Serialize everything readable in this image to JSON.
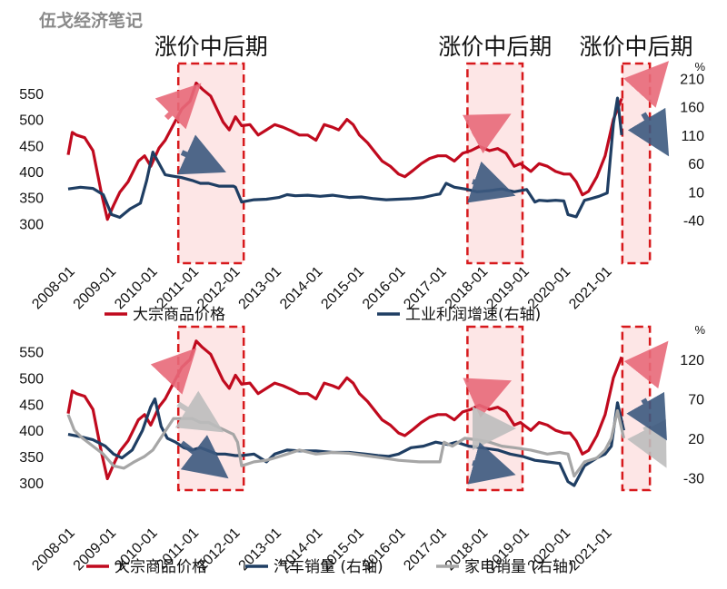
{
  "watermark": "伍戈经济笔记",
  "colors": {
    "commodity": "#c00a1e",
    "industrial": "#1f3e63",
    "auto": "#1f3e63",
    "appliance": "#a6a6a6",
    "highlight_border": "#d7191c",
    "highlight_fill": "#fde6e6"
  },
  "chart_data": [
    {
      "type": "line",
      "title": "",
      "x_tick_labels": [
        "2008-01",
        "2009-01",
        "2010-01",
        "2011-01",
        "2012-01",
        "2013-01",
        "2014-01",
        "2015-01",
        "2016-01",
        "2017-01",
        "2018-01",
        "2019-01",
        "2020-01",
        "2021-01"
      ],
      "y_left_ticks": [
        300,
        350,
        400,
        450,
        500,
        550
      ],
      "y_left_range": [
        290,
        590
      ],
      "y_right_ticks": [
        -40,
        10,
        60,
        110,
        160,
        210
      ],
      "y_right_range": [
        -55,
        220
      ],
      "y_right_unit": "%",
      "highlight_labels": [
        "涨价中后期",
        "涨价中后期",
        "涨价中后期"
      ],
      "highlight_periods": [
        [
          "2010-09",
          "2012-04"
        ],
        [
          "2017-09",
          "2019-01"
        ],
        [
          "2021-06",
          "2022-02"
        ]
      ],
      "series": [
        {
          "name": "大宗商品价格",
          "axis": "left",
          "color_key": "commodity",
          "x": [
            2008.0,
            2008.1,
            2008.2,
            2008.4,
            2008.6,
            2008.8,
            2008.95,
            2009.1,
            2009.25,
            2009.45,
            2009.7,
            2009.85,
            2010.0,
            2010.2,
            2010.35,
            2010.55,
            2010.75,
            2010.95,
            2011.1,
            2011.25,
            2011.45,
            2011.6,
            2011.75,
            2011.9,
            2012.05,
            2012.2,
            2012.4,
            2012.6,
            2012.8,
            2013.0,
            2013.2,
            2013.4,
            2013.6,
            2013.8,
            2014.0,
            2014.2,
            2014.4,
            2014.55,
            2014.75,
            2014.9,
            2015.05,
            2015.25,
            2015.45,
            2015.6,
            2015.8,
            2016.0,
            2016.15,
            2016.35,
            2016.55,
            2016.75,
            2016.95,
            2017.15,
            2017.35,
            2017.55,
            2017.75,
            2017.95,
            2018.2,
            2018.4,
            2018.6,
            2018.8,
            2018.95,
            2019.2,
            2019.4,
            2019.6,
            2019.8,
            2020.0,
            2020.15,
            2020.3,
            2020.45,
            2020.6,
            2020.8,
            2021.0,
            2021.2,
            2021.4
          ],
          "y": [
            432,
            475,
            470,
            465,
            440,
            360,
            308,
            335,
            360,
            380,
            420,
            430,
            410,
            445,
            460,
            490,
            520,
            535,
            570,
            558,
            545,
            520,
            495,
            480,
            505,
            488,
            490,
            470,
            480,
            490,
            485,
            478,
            470,
            470,
            460,
            490,
            485,
            480,
            500,
            490,
            470,
            455,
            435,
            420,
            410,
            395,
            390,
            402,
            415,
            425,
            430,
            430,
            420,
            435,
            440,
            448,
            440,
            444,
            435,
            410,
            415,
            400,
            415,
            410,
            400,
            395,
            395,
            380,
            355,
            362,
            390,
            430,
            500,
            540
          ]
        },
        {
          "name": "工业利润增速(右轴)",
          "axis": "right",
          "color_key": "industrial",
          "x": [
            2008.0,
            2008.3,
            2008.6,
            2008.85,
            2009.05,
            2009.25,
            2009.5,
            2009.75,
            2009.9,
            2010.05,
            2010.2,
            2010.35,
            2010.5,
            2010.75,
            2011.0,
            2011.2,
            2011.4,
            2011.65,
            2011.85,
            2012.0,
            2012.05,
            2012.2,
            2012.5,
            2012.8,
            2013.1,
            2013.3,
            2013.5,
            2013.8,
            2014.1,
            2014.4,
            2014.8,
            2015.1,
            2015.4,
            2015.7,
            2016.0,
            2016.3,
            2016.6,
            2016.9,
            2017.0,
            2017.15,
            2017.35,
            2017.6,
            2017.9,
            2018.2,
            2018.5,
            2018.8,
            2019.1,
            2019.3,
            2019.4,
            2019.6,
            2019.8,
            2020.0,
            2020.1,
            2020.3,
            2020.5,
            2020.65,
            2020.85,
            2021.05,
            2021.2,
            2021.3,
            2021.4
          ],
          "y": [
            15,
            18,
            16,
            5,
            -30,
            -35,
            -20,
            -10,
            30,
            80,
            60,
            40,
            38,
            35,
            30,
            25,
            25,
            20,
            20,
            20,
            18,
            -8,
            -4,
            -3,
            0,
            5,
            3,
            4,
            2,
            4,
            0,
            1,
            -2,
            -4,
            -3,
            -2,
            0,
            5,
            6,
            25,
            18,
            15,
            10,
            12,
            15,
            10,
            14,
            -8,
            -5,
            -6,
            -5,
            -6,
            -30,
            -34,
            -5,
            -2,
            2,
            8,
            130,
            175,
            110
          ]
        }
      ]
    },
    {
      "type": "line",
      "title": "",
      "x_tick_labels": [
        "2008-01",
        "2009-01",
        "2010-01",
        "2011-01",
        "2012-01",
        "2013-01",
        "2014-01",
        "2015-01",
        "2016-01",
        "2017-01",
        "2018-01",
        "2019-01",
        "2020-01",
        "2021-01"
      ],
      "y_left_ticks": [
        300,
        350,
        400,
        450,
        500,
        550
      ],
      "y_left_range": [
        295,
        580
      ],
      "y_right_ticks": [
        -30,
        20,
        70,
        120
      ],
      "y_right_range": [
        -40,
        150
      ],
      "y_right_unit": "%",
      "highlight_labels": [],
      "highlight_periods": [
        [
          "2010-09",
          "2012-04"
        ],
        [
          "2017-09",
          "2019-01"
        ],
        [
          "2021-06",
          "2022-02"
        ]
      ],
      "series": [
        {
          "name": "大宗商品价格",
          "axis": "left",
          "color_key": "commodity",
          "x": [
            2008.0,
            2008.1,
            2008.2,
            2008.4,
            2008.6,
            2008.8,
            2008.95,
            2009.1,
            2009.25,
            2009.45,
            2009.7,
            2009.85,
            2010.0,
            2010.2,
            2010.35,
            2010.55,
            2010.75,
            2010.95,
            2011.1,
            2011.25,
            2011.45,
            2011.6,
            2011.75,
            2011.9,
            2012.05,
            2012.2,
            2012.4,
            2012.6,
            2012.8,
            2013.0,
            2013.2,
            2013.4,
            2013.6,
            2013.8,
            2014.0,
            2014.2,
            2014.4,
            2014.55,
            2014.75,
            2014.9,
            2015.05,
            2015.25,
            2015.45,
            2015.6,
            2015.8,
            2016.0,
            2016.15,
            2016.35,
            2016.55,
            2016.75,
            2016.95,
            2017.15,
            2017.35,
            2017.55,
            2017.75,
            2017.95,
            2018.2,
            2018.4,
            2018.6,
            2018.8,
            2018.95,
            2019.2,
            2019.4,
            2019.6,
            2019.8,
            2020.0,
            2020.15,
            2020.3,
            2020.45,
            2020.6,
            2020.8,
            2021.0,
            2021.2,
            2021.4
          ],
          "y": [
            432,
            475,
            470,
            465,
            440,
            360,
            308,
            335,
            360,
            380,
            420,
            430,
            410,
            445,
            460,
            490,
            520,
            535,
            570,
            558,
            545,
            520,
            495,
            480,
            505,
            488,
            490,
            470,
            480,
            490,
            485,
            478,
            470,
            470,
            460,
            490,
            485,
            480,
            500,
            490,
            470,
            455,
            435,
            420,
            410,
            395,
            390,
            402,
            415,
            425,
            430,
            430,
            420,
            435,
            440,
            448,
            440,
            444,
            435,
            410,
            415,
            400,
            415,
            410,
            400,
            395,
            395,
            380,
            355,
            362,
            390,
            430,
            500,
            540
          ]
        },
        {
          "name": "汽车销量(右轴)",
          "axis": "right",
          "color_key": "auto",
          "x": [
            2008.0,
            2008.3,
            2008.6,
            2008.9,
            2009.1,
            2009.3,
            2009.55,
            2009.8,
            2010.0,
            2010.1,
            2010.25,
            2010.4,
            2010.6,
            2010.8,
            2011.0,
            2011.2,
            2011.4,
            2011.6,
            2011.8,
            2012.05,
            2012.2,
            2012.5,
            2012.8,
            2013.0,
            2013.3,
            2013.6,
            2014.0,
            2014.4,
            2014.8,
            2015.2,
            2015.5,
            2015.75,
            2016.0,
            2016.3,
            2016.6,
            2016.9,
            2017.2,
            2017.4,
            2017.7,
            2018.0,
            2018.4,
            2018.7,
            2019.0,
            2019.3,
            2019.6,
            2019.9,
            2020.1,
            2020.25,
            2020.5,
            2020.8,
            2021.0,
            2021.15,
            2021.3,
            2021.45
          ],
          "y": [
            25,
            22,
            18,
            10,
            0,
            -5,
            5,
            30,
            60,
            70,
            35,
            20,
            15,
            8,
            5,
            8,
            4,
            0,
            0,
            -2,
            -2,
            0,
            -10,
            0,
            5,
            4,
            4,
            2,
            2,
            0,
            -2,
            -3,
            0,
            8,
            10,
            15,
            12,
            15,
            10,
            8,
            5,
            0,
            -3,
            -8,
            -10,
            -12,
            -35,
            -40,
            -15,
            -5,
            0,
            10,
            65,
            30
          ]
        },
        {
          "name": "家电销量 (右轴)",
          "axis": "right",
          "color_key": "appliance",
          "x": [
            2008.0,
            2008.15,
            2008.35,
            2008.6,
            2008.85,
            2009.1,
            2009.35,
            2009.6,
            2009.85,
            2010.05,
            2010.3,
            2010.55,
            2010.8,
            2011.0,
            2011.2,
            2011.4,
            2011.6,
            2011.8,
            2012.0,
            2012.1,
            2012.2,
            2012.5,
            2012.8,
            2013.0,
            2013.3,
            2013.6,
            2014.0,
            2014.4,
            2014.8,
            2015.2,
            2015.6,
            2016.0,
            2016.5,
            2017.0,
            2017.1,
            2017.3,
            2017.6,
            2017.9,
            2018.2,
            2018.5,
            2018.8,
            2019.2,
            2019.6,
            2019.9,
            2020.1,
            2020.25,
            2020.5,
            2020.8,
            2021.0,
            2021.15,
            2021.3,
            2021.45
          ],
          "y": [
            50,
            30,
            20,
            10,
            0,
            -15,
            -18,
            -10,
            -3,
            5,
            25,
            45,
            45,
            45,
            40,
            40,
            35,
            30,
            25,
            15,
            -15,
            -10,
            -8,
            -5,
            0,
            5,
            0,
            2,
            1,
            -2,
            -5,
            -8,
            -10,
            -10,
            15,
            10,
            20,
            18,
            15,
            10,
            8,
            5,
            0,
            2,
            0,
            -28,
            -10,
            -5,
            5,
            20,
            55,
            20
          ]
        }
      ]
    }
  ],
  "legend_top": [
    "大宗商品价格",
    "工业利润增速(右轴)"
  ],
  "legend_bottom": [
    "大宗商品价格",
    "汽车销量 (右轴)",
    "家电销量 (右轴)"
  ]
}
